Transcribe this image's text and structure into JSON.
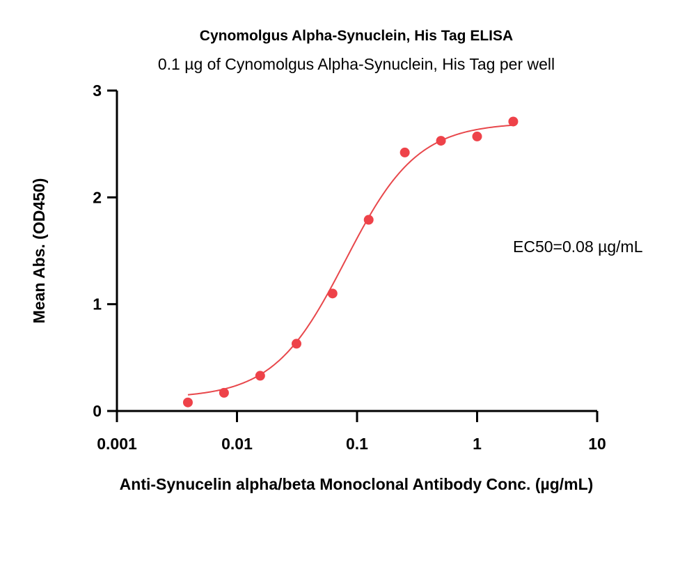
{
  "chart_data": {
    "type": "scatter",
    "title": "Cynomolgus Alpha-Synuclein, His Tag ELISA",
    "subtitle": "0.1 µg of Cynomolgus Alpha-Synuclein, His Tag per well",
    "xlabel": "Anti-Synucelin alpha/beta Monoclonal Antibody Conc. (µg/mL)",
    "ylabel": "Mean Abs. (OD450)",
    "x_scale": "log",
    "xlim": [
      0.001,
      10
    ],
    "ylim": [
      0,
      3
    ],
    "x_ticks": [
      "0.001",
      "0.01",
      "0.1",
      "1",
      "10"
    ],
    "y_ticks": [
      "0",
      "1",
      "2",
      "3"
    ],
    "annotation": "EC50=0.08 µg/mL",
    "point_color": "#ee4249",
    "curve_color": "#e8474b",
    "series": [
      {
        "x": [
          0.0039,
          0.0078,
          0.0156,
          0.0313,
          0.0625,
          0.125,
          0.25,
          0.5,
          1,
          2
        ],
        "y": [
          0.08,
          0.17,
          0.33,
          0.63,
          1.1,
          1.79,
          2.42,
          2.53,
          2.57,
          2.71
        ]
      }
    ],
    "fit": {
      "bottom": 0.12,
      "top": 2.7,
      "ec50": 0.08,
      "hill": 1.45,
      "x_range": [
        0.0039,
        2
      ]
    }
  }
}
